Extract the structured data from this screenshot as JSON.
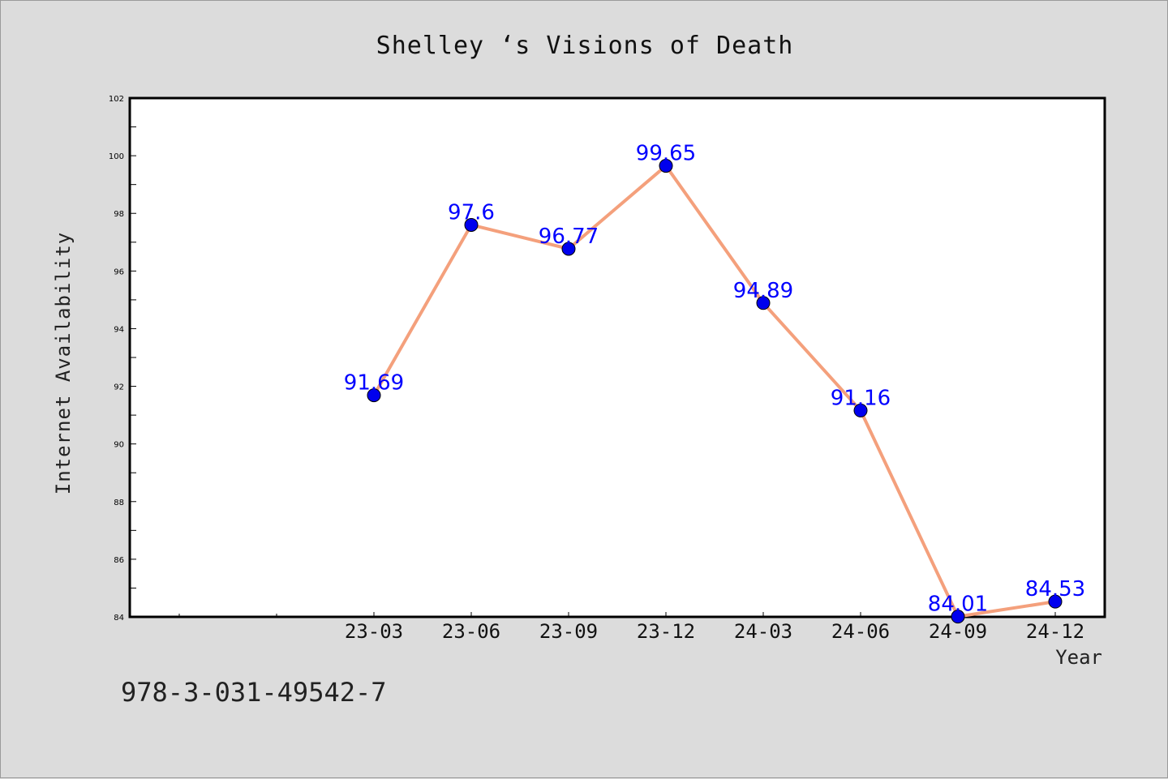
{
  "chart_data": {
    "type": "line",
    "title": "Shelley ‘s Visions of Death",
    "xlabel": "Year",
    "ylabel": "Internet Availability",
    "categories": [
      "23-03",
      "23-06",
      "23-09",
      "23-12",
      "24-03",
      "24-06",
      "24-09",
      "24-12"
    ],
    "series": [
      {
        "values": [
          91.69,
          97.6,
          96.77,
          99.65,
          94.89,
          91.16,
          84.01,
          84.53
        ],
        "data_labels": [
          "91.69",
          "97.6",
          "96.77",
          "99.65",
          "94.89",
          "91.16",
          "84.01",
          "84.53"
        ],
        "line_color": "#f4a07c",
        "marker_color": "#0000ee"
      }
    ],
    "yticks": [
      "84",
      "86",
      "88",
      "90",
      "92",
      "94",
      "96",
      "98",
      "100",
      "102"
    ],
    "ylim": [
      84,
      102
    ],
    "grid": false,
    "legend": "none"
  },
  "footer_text": "978-3-031-49542-7",
  "colors": {
    "background": "#dcdcdc",
    "plot_background": "#ffffff",
    "label_color": "#0000ff"
  }
}
